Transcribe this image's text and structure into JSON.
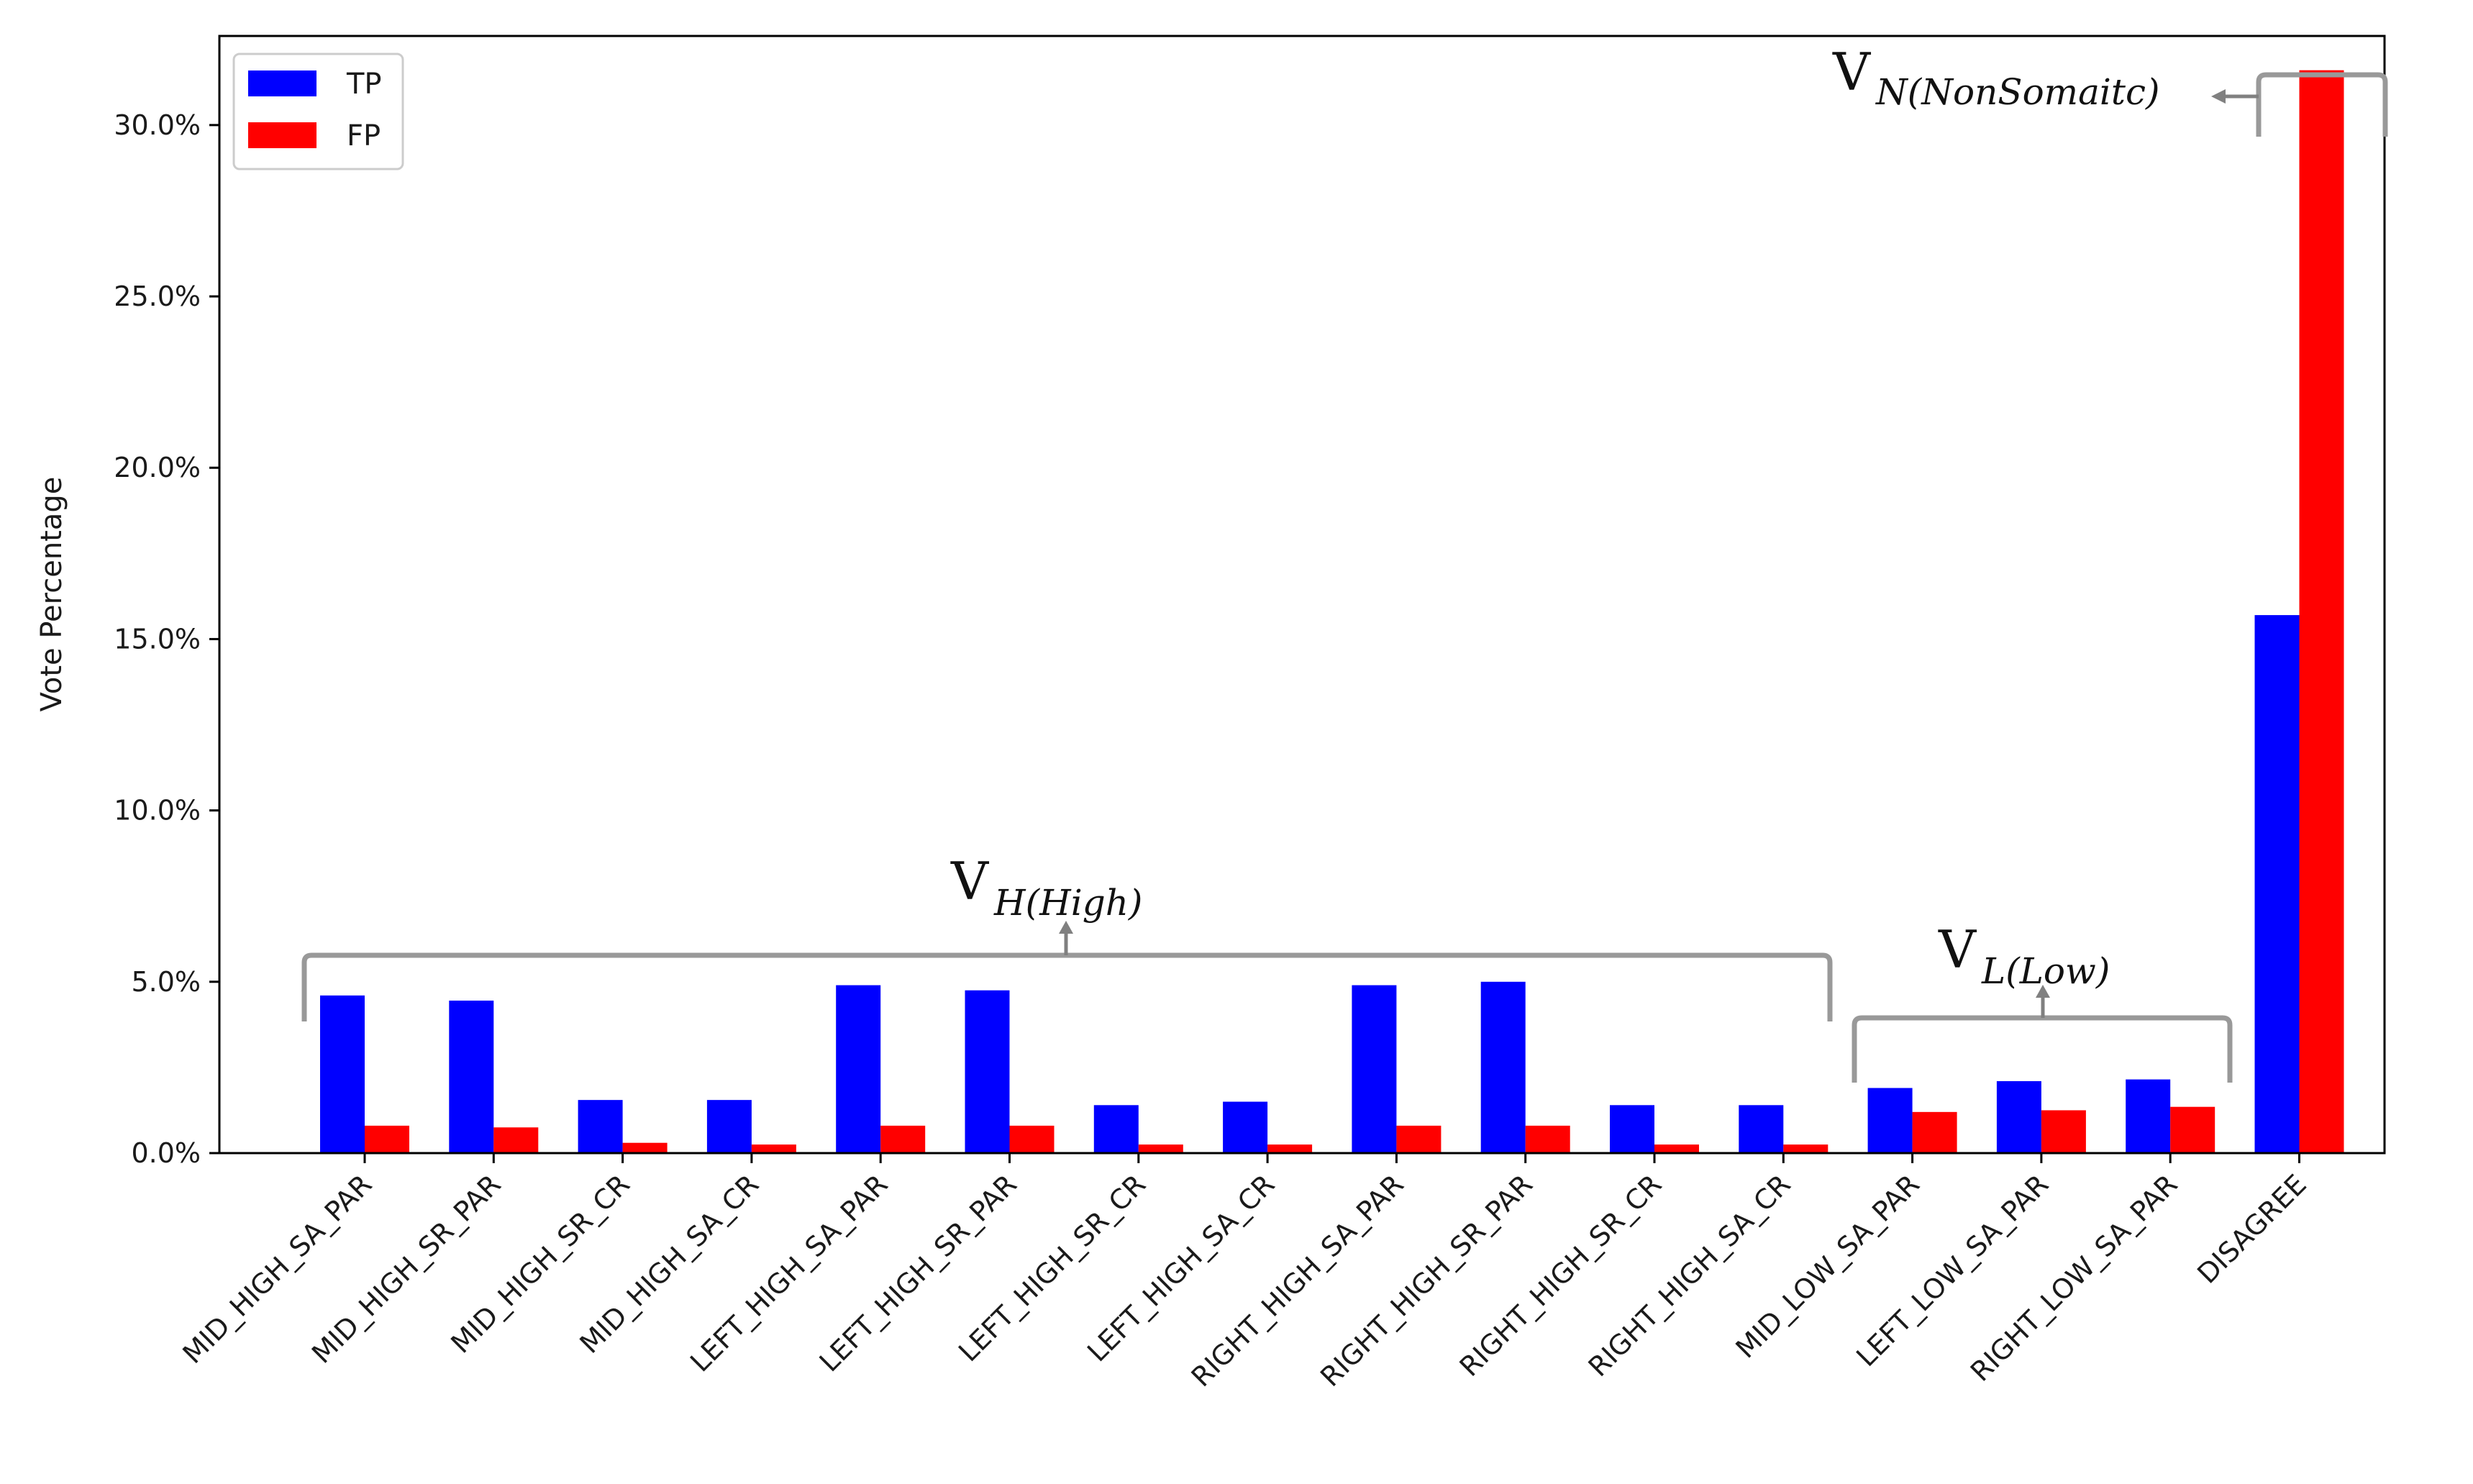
{
  "chart_data": {
    "type": "bar",
    "ylabel": "Vote Percentage",
    "xlabel": "",
    "ylim": [
      0,
      32.6
    ],
    "y_ticks": [
      "0.0%",
      "5.0%",
      "10.0%",
      "15.0%",
      "20.0%",
      "25.0%",
      "30.0%"
    ],
    "y_tick_values": [
      0,
      5,
      10,
      15,
      20,
      25,
      30
    ],
    "grid": false,
    "legend_position": "top-left",
    "categories": [
      "MID_HIGH_SA_PAR",
      "MID_HIGH_SR_PAR",
      "MID_HIGH_SR_CR",
      "MID_HIGH_SA_CR",
      "LEFT_HIGH_SA_PAR",
      "LEFT_HIGH_SR_PAR",
      "LEFT_HIGH_SR_CR",
      "LEFT_HIGH_SA_CR",
      "RIGHT_HIGH_SA_PAR",
      "RIGHT_HIGH_SR_PAR",
      "RIGHT_HIGH_SR_CR",
      "RIGHT_HIGH_SA_CR",
      "MID_LOW_SA_PAR",
      "LEFT_LOW_SA_PAR",
      "RIGHT_LOW_SA_PAR",
      "DISAGREE"
    ],
    "series": [
      {
        "name": "TP",
        "color": "#0000ff",
        "values": [
          4.6,
          4.45,
          1.55,
          1.55,
          4.9,
          4.75,
          1.4,
          1.5,
          4.9,
          5.0,
          1.4,
          1.4,
          1.9,
          2.1,
          2.15,
          15.7
        ]
      },
      {
        "name": "FP",
        "color": "#ff0000",
        "values": [
          0.8,
          0.75,
          0.3,
          0.25,
          0.8,
          0.8,
          0.25,
          0.25,
          0.8,
          0.8,
          0.25,
          0.25,
          1.2,
          1.25,
          1.35,
          31.6
        ]
      }
    ],
    "annotations": [
      {
        "main": "V",
        "sub": "H(High)",
        "group_start": 0,
        "group_end": 11
      },
      {
        "main": "V",
        "sub": "L(Low)",
        "group_start": 12,
        "group_end": 14
      },
      {
        "main": "V",
        "sub": "N(NonSomaitc)",
        "group_start": 15,
        "group_end": 15
      }
    ],
    "bracket_color": "#999999"
  }
}
